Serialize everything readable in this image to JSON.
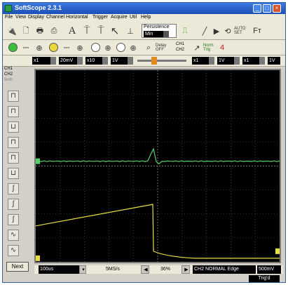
{
  "window": {
    "title": "SoftScope 2.3.1"
  },
  "menu": [
    "File",
    "View",
    "Display",
    "Channel",
    "Horizontal",
    "Trigger",
    "Acquire",
    "Util",
    "Help"
  ],
  "toolbar": {
    "persistence_label": "Persistence",
    "persistence_value": "Min",
    "auto_set": "AUTO SET",
    "delay_label": "Delay OFF",
    "ch1": "CH1",
    "ch2": "CH2",
    "norm_trig": "Norm Trig"
  },
  "channel_bar": {
    "ch1_fields": [
      "x1",
      "20mV",
      "x10",
      "1V"
    ],
    "ch2_fields": [
      "x1",
      "1V",
      "x1",
      "1V"
    ]
  },
  "radio": [
    "CH1",
    "CH2",
    "Both"
  ],
  "next_label": "Next",
  "status": {
    "timebase": "100us",
    "sample_rate": "5MS/s",
    "position": "36%",
    "trigger": "CH2 NORMAL Edge",
    "level": "500mV",
    "trig_state": "Trig'd"
  },
  "colors": {
    "trace_ch1": "#58d068",
    "trace_ch2": "#e8e040",
    "grid": "#5a5a5a",
    "screen": "#000000"
  },
  "chart_data": {
    "type": "line",
    "series": [
      {
        "color": "#58d068",
        "baseline_div": 3.8,
        "pulse_at_div": 4.8,
        "pulse_amp_div": 0.55
      },
      {
        "color": "#e8e040",
        "start_div": 6.5,
        "ramp_end_div": 5.6,
        "drop_at_div": 4.8,
        "settle_div": 7.85
      }
    ],
    "grid": {
      "x_divisions": 10,
      "y_divisions": 8
    }
  }
}
